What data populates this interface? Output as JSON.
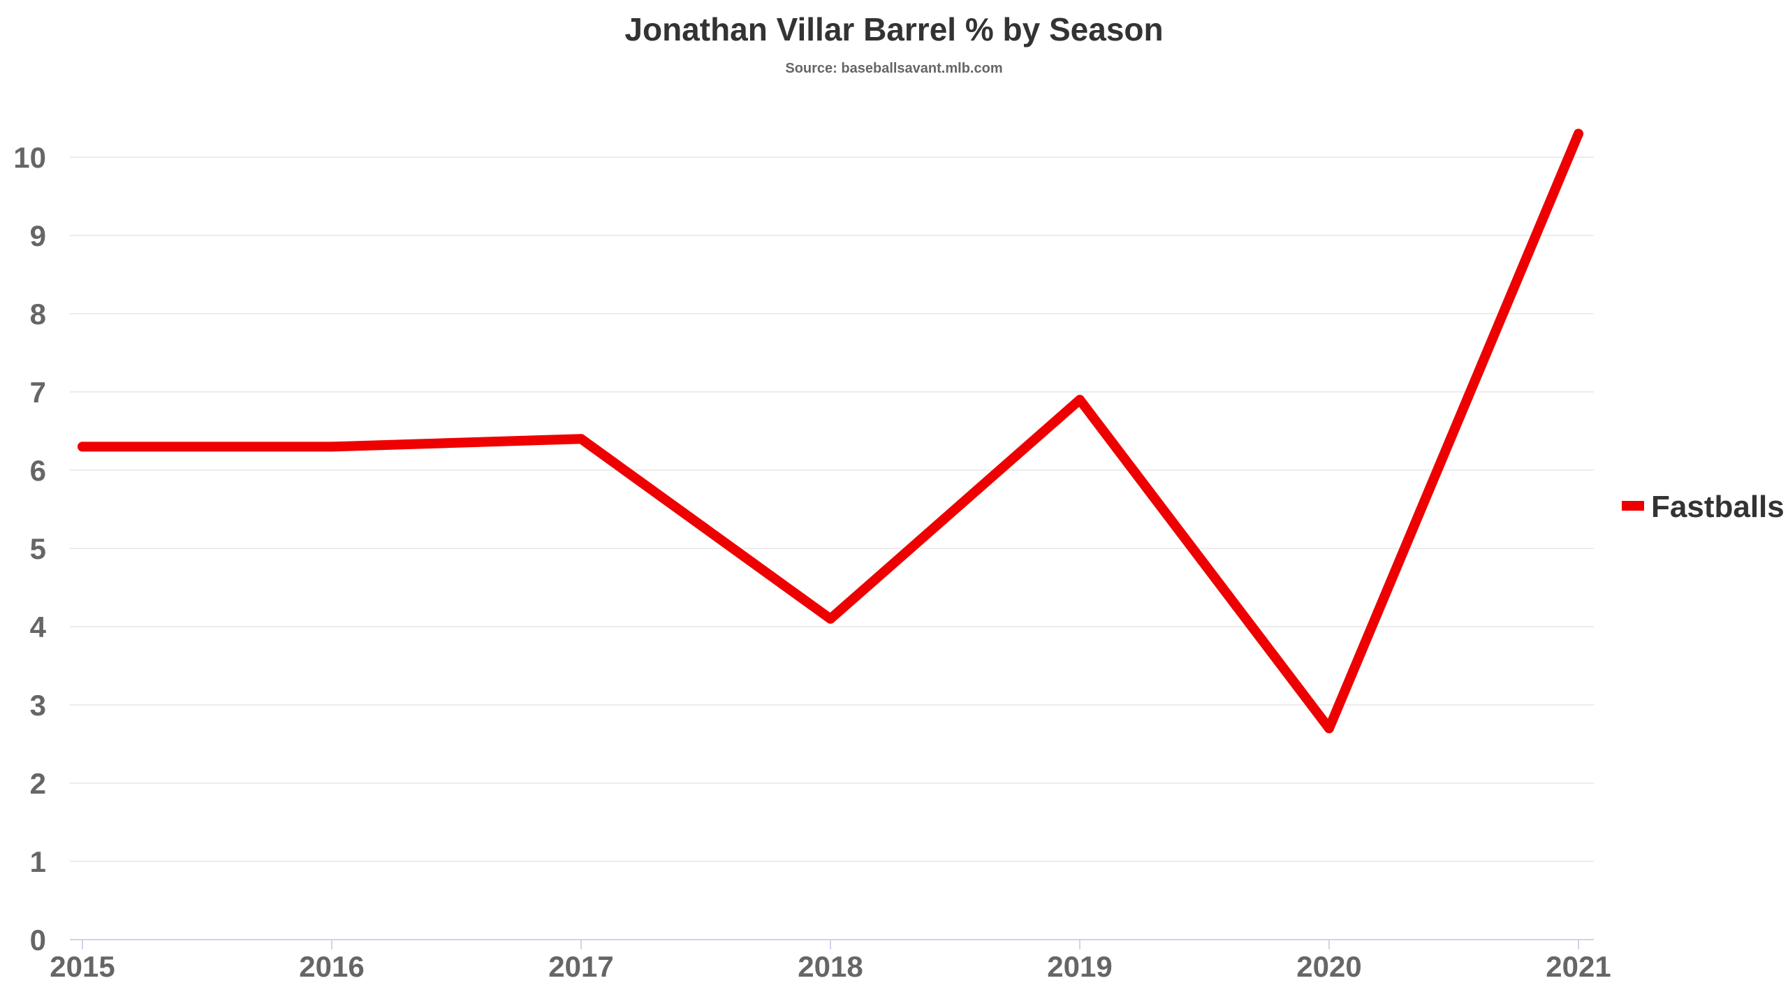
{
  "chart_data": {
    "type": "line",
    "title": "Jonathan Villar Barrel % by Season",
    "subtitle": "Source: baseballsavant.mlb.com",
    "xlabel": "",
    "ylabel": "",
    "categories": [
      "2015",
      "2016",
      "2017",
      "2018",
      "2019",
      "2020",
      "2021"
    ],
    "series": [
      {
        "name": "Fastballs",
        "color": "#ee0000",
        "values": [
          6.3,
          6.3,
          6.4,
          4.1,
          6.9,
          2.7,
          10.3
        ]
      }
    ],
    "ylim": [
      0,
      10.5
    ],
    "yticks": [
      "0",
      "1",
      "2",
      "3",
      "4",
      "5",
      "6",
      "7",
      "8",
      "9",
      "10"
    ],
    "grid": true,
    "legend": {
      "position": "right",
      "entries": [
        "Fastballs"
      ]
    }
  }
}
